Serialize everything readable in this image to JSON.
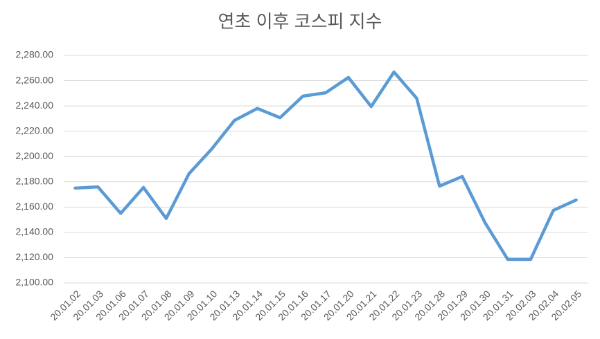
{
  "chart_data": {
    "type": "line",
    "title": "연초 이후 코스피 지수",
    "categories": [
      "20.01.02",
      "20.01.03",
      "20.01.06",
      "20.01.07",
      "20.01.08",
      "20.01.09",
      "20.01.10",
      "20.01.13",
      "20.01.14",
      "20.01.15",
      "20.01.16",
      "20.01.17",
      "20.01.20",
      "20.01.21",
      "20.01.22",
      "20.01.23",
      "20.01.28",
      "20.01.29",
      "20.01.30",
      "20.01.31",
      "20.02.03",
      "20.02.04",
      "20.02.05"
    ],
    "series": [
      {
        "name": "코스피",
        "color": "#5b9bd5",
        "values": [
          2175,
          2176,
          2155,
          2175.5,
          2151,
          2186.4,
          2206,
          2228.6,
          2238,
          2230.7,
          2247.7,
          2250.4,
          2262.5,
          2239.5,
          2266.8,
          2246,
          2176.6,
          2184.2,
          2147.6,
          2118.6,
          2118.6,
          2157.4,
          2165.6
        ]
      }
    ],
    "ylim": [
      2100,
      2280
    ],
    "yticks": [
      {
        "value": 2100,
        "label": "2,100.00"
      },
      {
        "value": 2120,
        "label": "2,120.00"
      },
      {
        "value": 2140,
        "label": "2,140.00"
      },
      {
        "value": 2160,
        "label": "2,160.00"
      },
      {
        "value": 2180,
        "label": "2,180.00"
      },
      {
        "value": 2200,
        "label": "2,200.00"
      },
      {
        "value": 2220,
        "label": "2,220.00"
      },
      {
        "value": 2240,
        "label": "2,240.00"
      },
      {
        "value": 2260,
        "label": "2,260.00"
      },
      {
        "value": 2280,
        "label": "2,280.00"
      }
    ],
    "grid": true
  }
}
